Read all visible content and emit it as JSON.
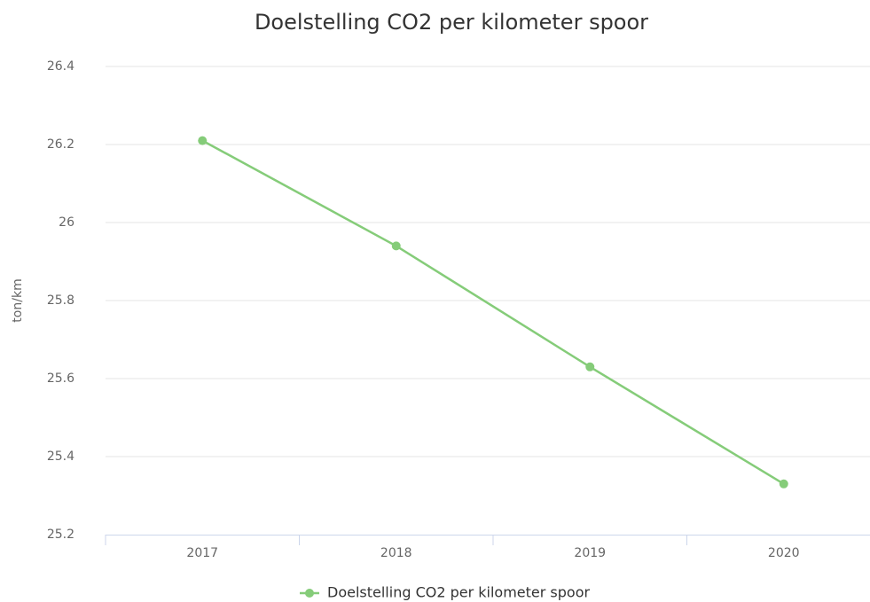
{
  "chart_data": {
    "type": "line",
    "title": "Doelstelling CO2 per kilometer spoor",
    "y_label": "ton/km",
    "categories": [
      "2017",
      "2018",
      "2019",
      "2020"
    ],
    "series": [
      {
        "name": "Doelstelling CO2 per kilometer spoor",
        "color": "#85cc79",
        "values": [
          26.21,
          25.94,
          25.63,
          25.33
        ]
      }
    ],
    "ylim": [
      25.2,
      26.4
    ],
    "yticks": [
      25.2,
      25.4,
      25.6,
      25.8,
      26,
      26.2,
      26.4
    ],
    "grid": true,
    "legend": "bottom"
  }
}
